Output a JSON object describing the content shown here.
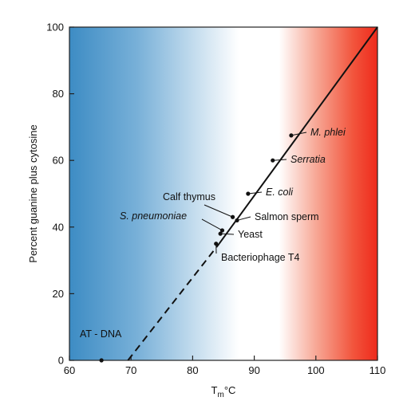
{
  "chart_data": {
    "type": "scatter",
    "xlabel": "T",
    "xlabel_sub": "m",
    "xlabel_suffix": "°C",
    "ylabel": "Percent guanine plus cytosine",
    "xlim": [
      60,
      110
    ],
    "ylim": [
      0,
      100
    ],
    "xticks": [
      60,
      70,
      80,
      90,
      100,
      110
    ],
    "yticks": [
      0,
      20,
      40,
      60,
      80,
      100
    ],
    "grid": false,
    "background": "gradient: blue (low Tm) through white to red (high Tm)",
    "colors": {
      "cold": "#3d8cc4",
      "mid": "#ffffff",
      "hot": "#ee2a1b"
    },
    "line": {
      "solid": [
        [
          84.3,
          35
        ],
        [
          110,
          100
        ]
      ],
      "dashed": [
        [
          69.5,
          0
        ],
        [
          84.3,
          35
        ]
      ]
    },
    "points": [
      {
        "label": "AT - DNA",
        "italic": false,
        "x": 65.2,
        "y": 0
      },
      {
        "label": "Bacteriophage T4",
        "italic": false,
        "x": 83.8,
        "y": 35
      },
      {
        "label": "Yeast",
        "italic": false,
        "x": 84.5,
        "y": 38
      },
      {
        "label": "S. pneumoniae",
        "italic": true,
        "x": 84.8,
        "y": 39
      },
      {
        "label": "Calf thymus",
        "italic": false,
        "x": 86.5,
        "y": 43
      },
      {
        "label": "Salmon sperm",
        "italic": false,
        "x": 87.2,
        "y": 42
      },
      {
        "label": "E. coli",
        "italic": true,
        "x": 89,
        "y": 50
      },
      {
        "label": "Serratia",
        "italic": true,
        "x": 93,
        "y": 60
      },
      {
        "label": "M. phlei",
        "italic": true,
        "x": 96,
        "y": 67.5
      }
    ]
  }
}
